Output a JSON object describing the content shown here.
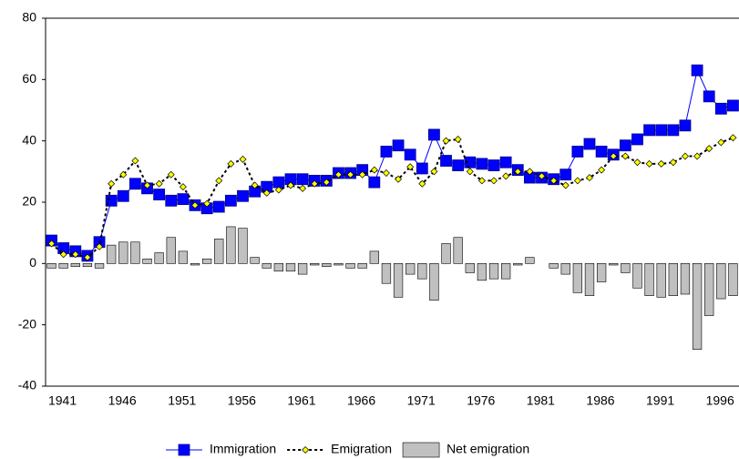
{
  "chart_data": {
    "type": "combo",
    "categories": [
      "1941",
      null,
      null,
      null,
      null,
      "1946",
      null,
      null,
      null,
      null,
      "1951",
      null,
      null,
      null,
      null,
      "1956",
      null,
      null,
      null,
      null,
      "1961",
      null,
      null,
      null,
      null,
      "1966",
      null,
      null,
      null,
      null,
      "1971",
      null,
      null,
      null,
      null,
      "1976",
      null,
      null,
      null,
      null,
      "1981",
      null,
      null,
      null,
      null,
      "1986",
      null,
      null,
      null,
      null,
      "1991",
      null,
      null,
      null,
      null,
      "1996",
      null,
      null
    ],
    "ylim": [
      -40,
      80
    ],
    "yticks": [
      -40,
      -20,
      0,
      20,
      40,
      60,
      80
    ],
    "series": [
      {
        "name": "Immigration",
        "type": "line",
        "color": "#0000ff",
        "marker": "square",
        "values": [
          7.5,
          5,
          4,
          2.5,
          7,
          20.5,
          22,
          26,
          24.5,
          22.5,
          20.5,
          21,
          19,
          18,
          18.5,
          20.5,
          22,
          23.5,
          25,
          26.5,
          27.5,
          27.5,
          27,
          27,
          29.5,
          29.5,
          30.5,
          26.5,
          36.5,
          38.5,
          35.5,
          31,
          42,
          33.5,
          32,
          33,
          32.5,
          32,
          33,
          30.5,
          28,
          28,
          27.5,
          29,
          36.5,
          39,
          36.5,
          35.5,
          38.5,
          40.5,
          43.5,
          43.5,
          43.5,
          45,
          63,
          54.5,
          50.5,
          51.5
        ]
      },
      {
        "name": "Emigration",
        "type": "line",
        "color": "#ffff00",
        "marker": "diamond",
        "values": [
          6.5,
          3,
          3,
          2,
          5.5,
          26,
          29,
          33.5,
          25.5,
          26,
          29,
          25,
          19,
          19.5,
          27,
          32.5,
          34,
          25.5,
          23,
          24,
          25.5,
          24.5,
          26,
          26.5,
          29,
          29,
          29,
          30.5,
          29.5,
          27.5,
          31.5,
          26,
          30,
          40,
          40.5,
          30,
          27,
          27,
          28.5,
          30,
          30,
          28.5,
          27,
          25.5,
          27,
          28,
          30.5,
          35,
          35,
          33,
          32.5,
          32.5,
          33,
          35,
          35,
          37.5,
          39.5,
          41
        ]
      },
      {
        "name": "Net emigration",
        "type": "bar",
        "color": "#c0c0c0",
        "values": [
          -1.5,
          -1.5,
          -1,
          -1,
          -1.5,
          6,
          7,
          7,
          1.5,
          3.5,
          8.5,
          4,
          -0.5,
          1.5,
          8,
          12,
          11.5,
          2,
          -1.5,
          -2.5,
          -2.5,
          -3.5,
          -0.5,
          -1,
          -0.5,
          -1.5,
          -1.5,
          4,
          -6.5,
          -11,
          -3.5,
          -5,
          -12,
          6.5,
          8.5,
          -3,
          -5.5,
          -5,
          -5,
          -0.5,
          2,
          0,
          -1.5,
          -3.5,
          -9.5,
          -10.5,
          -6,
          -0.5,
          -3,
          -8,
          -10.5,
          -11,
          -10.5,
          -10,
          -28,
          -17,
          -11.5,
          -10.5
        ]
      }
    ]
  }
}
